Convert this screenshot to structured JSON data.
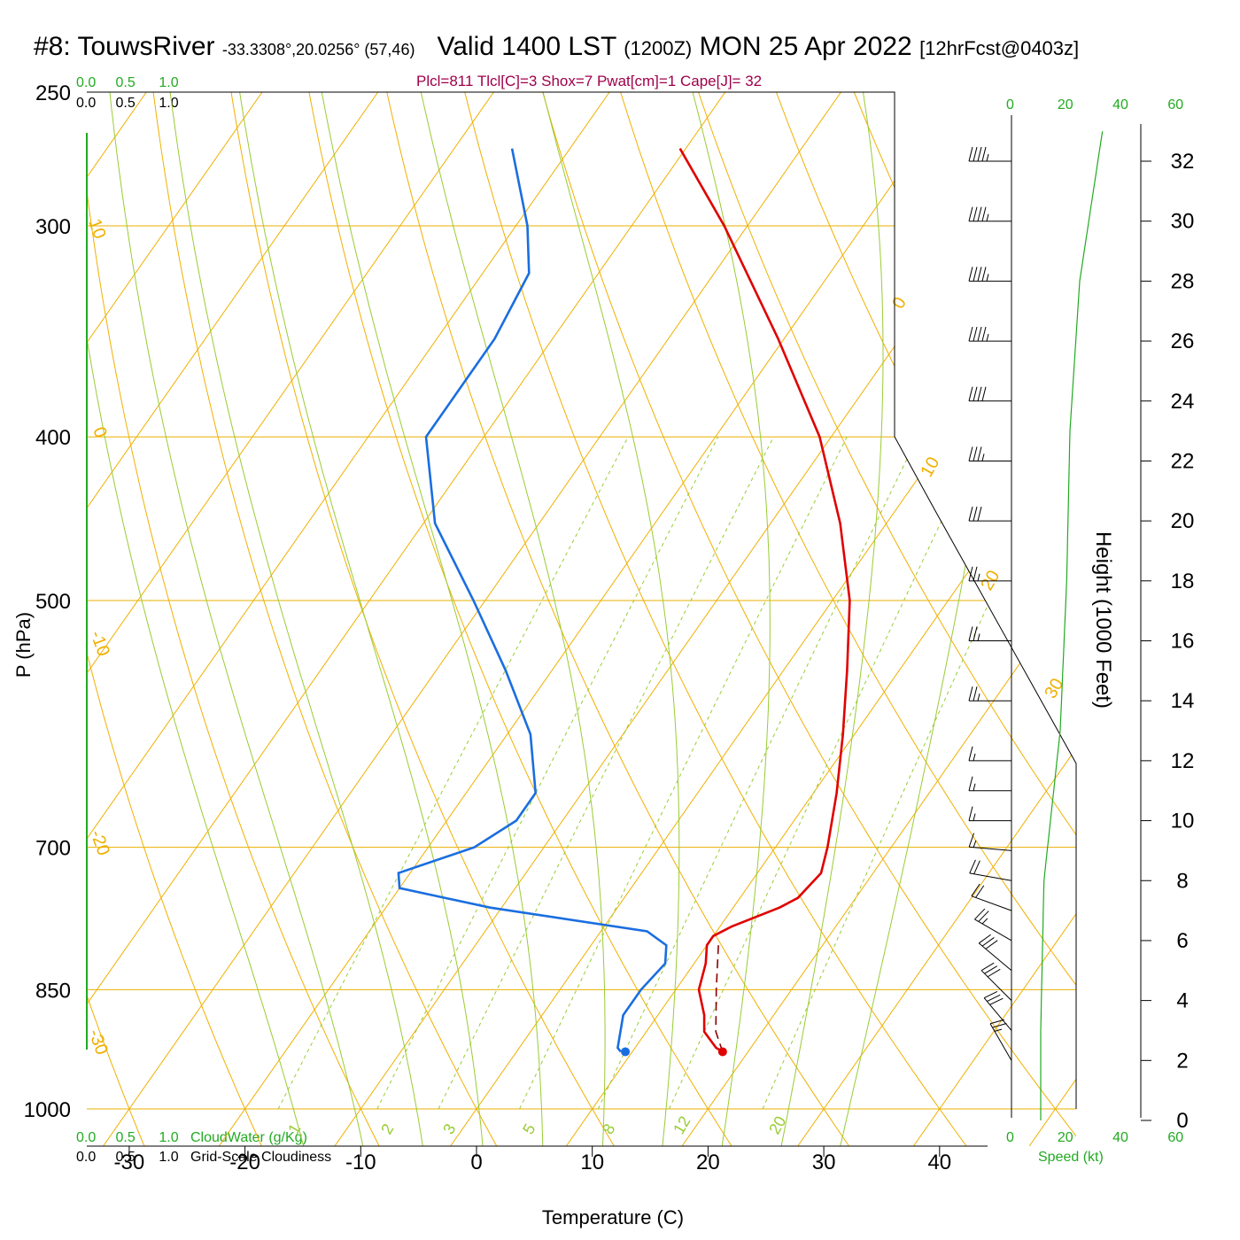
{
  "header": {
    "station": "#8: TouwsRiver",
    "coords": "-33.3308°,20.0256° (57,46)",
    "valid": "Valid 1400 LST",
    "zulu": "(1200Z)",
    "date": "MON 25 Apr 2022",
    "forecast": "[12hrFcst@0403z]",
    "indices": "Plcl=811 Tlcl[C]=3 Shox=7 Pwat[cm]=1 Cape[J]= 32"
  },
  "scales": {
    "top_cloud_ticks": [
      "0.0",
      "0.5",
      "1.0"
    ],
    "bottom_cloudwater_label": "CloudWater (g/Kg)",
    "bottom_cloudiness_label": "Grid-Scale Cloudiness",
    "speed_ticks": [
      "0",
      "20",
      "40",
      "60"
    ],
    "speed_label": "Speed (kt)"
  },
  "chart_data": {
    "type": "line",
    "xlabel": "Temperature (C)",
    "ylabel": "P (hPa)",
    "y2label": "Height (1000 Feet)",
    "x_ticks": [
      -30,
      -20,
      -10,
      0,
      10,
      20,
      30,
      40
    ],
    "p_ticks": [
      250,
      300,
      400,
      500,
      700,
      850,
      1000
    ],
    "height_ticks": [
      0,
      2,
      4,
      6,
      8,
      10,
      12,
      14,
      16,
      18,
      20,
      22,
      24,
      26,
      28,
      30,
      32
    ],
    "isotherm_labels": [
      10,
      0,
      -10,
      -20,
      -30,
      0,
      10,
      20,
      30
    ],
    "mixing_ratio_labels": [
      "1",
      "2",
      "3",
      "5",
      "8",
      "12",
      "20"
    ],
    "series": [
      {
        "name": "Temperature",
        "color": "#e00000",
        "points": [
          [
            270,
            -40.5
          ],
          [
            300,
            -32
          ],
          [
            350,
            -20.5
          ],
          [
            400,
            -11
          ],
          [
            450,
            -4
          ],
          [
            500,
            1.5
          ],
          [
            550,
            5.5
          ],
          [
            600,
            9
          ],
          [
            650,
            12
          ],
          [
            700,
            14.5
          ],
          [
            725,
            15.5
          ],
          [
            750,
            15
          ],
          [
            760,
            14
          ],
          [
            780,
            11
          ],
          [
            790,
            10
          ],
          [
            800,
            10
          ],
          [
            820,
            11
          ],
          [
            850,
            12
          ],
          [
            880,
            14
          ],
          [
            900,
            15
          ],
          [
            920,
            17
          ],
          [
            925,
            17.8
          ]
        ]
      },
      {
        "name": "Dewpoint",
        "color": "#1a6ee0",
        "points": [
          [
            270,
            -55
          ],
          [
            300,
            -49
          ],
          [
            320,
            -46
          ],
          [
            350,
            -45
          ],
          [
            375,
            -45
          ],
          [
            400,
            -45
          ],
          [
            450,
            -39
          ],
          [
            500,
            -31
          ],
          [
            550,
            -24
          ],
          [
            600,
            -18
          ],
          [
            650,
            -14
          ],
          [
            675,
            -14
          ],
          [
            700,
            -16
          ],
          [
            725,
            -21
          ],
          [
            740,
            -20
          ],
          [
            760,
            -11
          ],
          [
            785,
            4
          ],
          [
            800,
            6.5
          ],
          [
            820,
            7.5
          ],
          [
            850,
            7
          ],
          [
            880,
            7
          ],
          [
            920,
            8.5
          ],
          [
            925,
            9
          ]
        ]
      },
      {
        "name": "Parcel",
        "color": "#8b0000",
        "points": [
          [
            800,
            11
          ],
          [
            850,
            13.5
          ],
          [
            900,
            16
          ],
          [
            925,
            17.8
          ]
        ]
      }
    ],
    "surface": {
      "p": 925,
      "t": 17.8,
      "td": 9.4
    },
    "wind_speed_profile": [
      [
        0,
        28
      ],
      [
        5,
        21
      ],
      [
        10,
        18
      ],
      [
        15,
        17
      ],
      [
        20,
        15
      ],
      [
        25,
        10
      ],
      [
        30,
        9
      ]
    ],
    "wind_barbs": [
      {
        "h": 2,
        "spd": 25,
        "dir": 330
      },
      {
        "h": 3,
        "spd": 30,
        "dir": 320
      },
      {
        "h": 4,
        "spd": 30,
        "dir": 315
      },
      {
        "h": 5,
        "spd": 30,
        "dir": 310
      },
      {
        "h": 6,
        "spd": 25,
        "dir": 300
      },
      {
        "h": 7,
        "spd": 20,
        "dir": 290
      },
      {
        "h": 8,
        "spd": 20,
        "dir": 280
      },
      {
        "h": 9,
        "spd": 15,
        "dir": 275
      },
      {
        "h": 10,
        "spd": 15,
        "dir": 270
      },
      {
        "h": 11,
        "spd": 15,
        "dir": 270
      },
      {
        "h": 12,
        "spd": 15,
        "dir": 270
      },
      {
        "h": 14,
        "spd": 25,
        "dir": 270
      },
      {
        "h": 16,
        "spd": 25,
        "dir": 270
      },
      {
        "h": 18,
        "spd": 25,
        "dir": 270
      },
      {
        "h": 20,
        "spd": 30,
        "dir": 270
      },
      {
        "h": 22,
        "spd": 35,
        "dir": 270
      },
      {
        "h": 24,
        "spd": 40,
        "dir": 270
      },
      {
        "h": 26,
        "spd": 45,
        "dir": 270
      },
      {
        "h": 28,
        "spd": 45,
        "dir": 270
      },
      {
        "h": 30,
        "spd": 45,
        "dir": 270
      },
      {
        "h": 32,
        "spd": 45,
        "dir": 270
      }
    ],
    "cloudwater_values": [
      0.0
    ],
    "cloudiness_values": [
      0.0
    ]
  }
}
